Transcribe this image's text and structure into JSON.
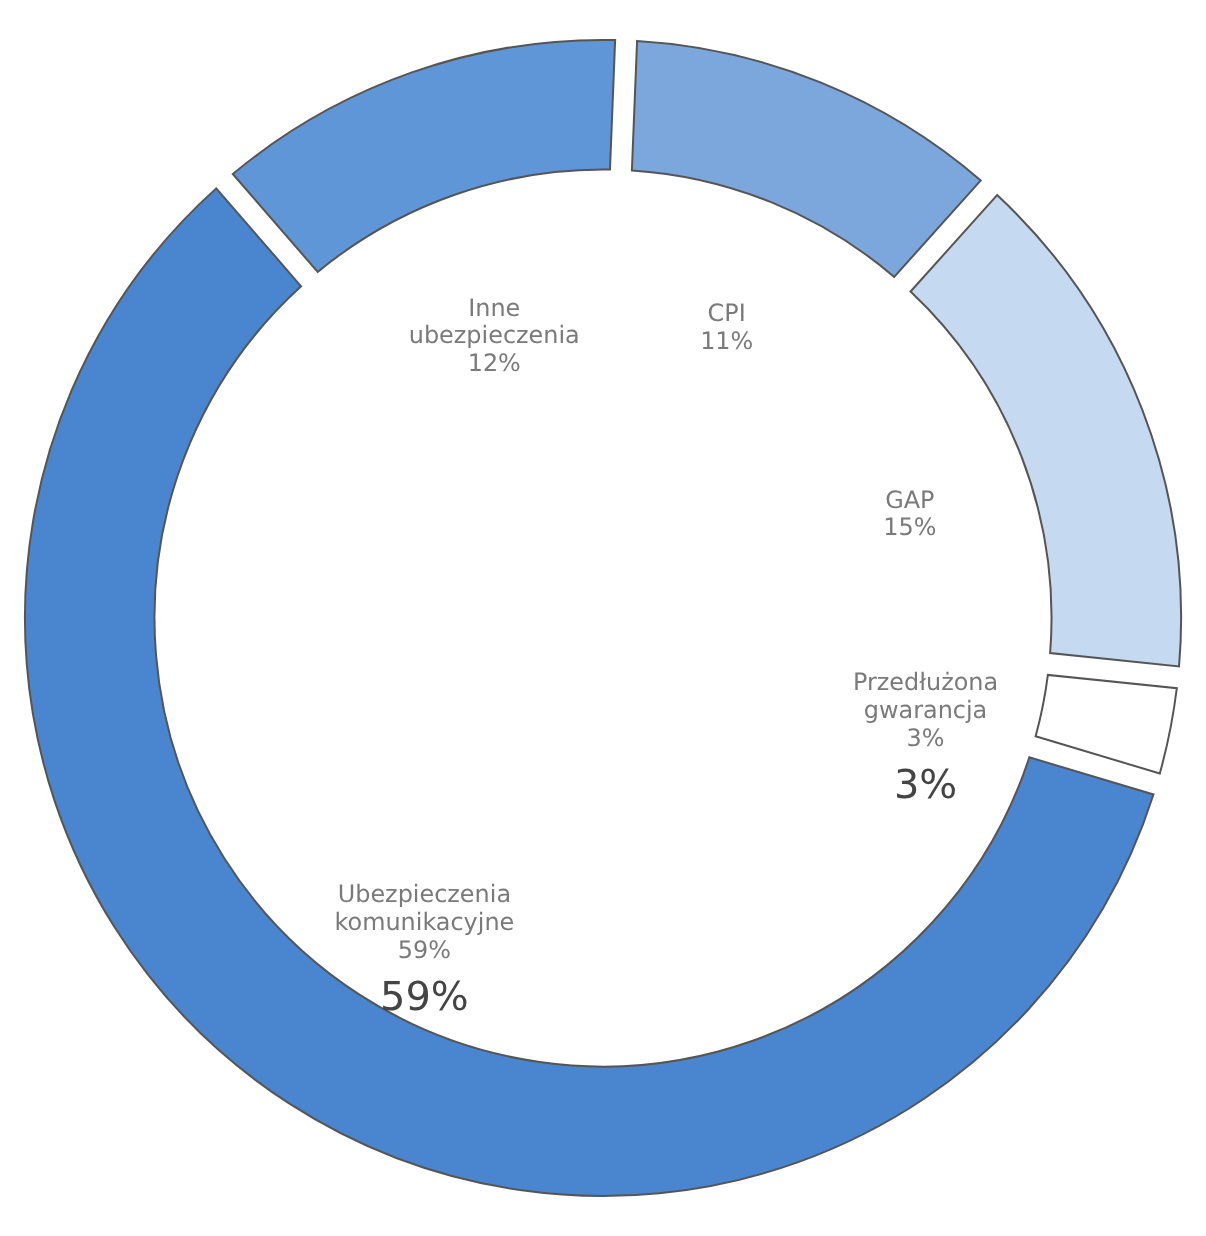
{
  "chart_data": {
    "type": "donut",
    "categories": [
      "CPI",
      "GAP",
      "Przedłużona gwarancja",
      "Ubezpieczenia komunikacyjne",
      "Inne ubezpieczenia"
    ],
    "values": [
      11,
      15,
      3,
      59,
      12
    ],
    "colors": [
      "#7ba7dd",
      "#c5d9f0",
      "#ffffff",
      "#4a86d0",
      "#5f96d8"
    ],
    "value_labels": [
      "11%",
      "15%",
      "3%",
      "59%",
      "12%"
    ],
    "annotations": [
      {
        "text": "3%",
        "x": "Przedłużona gwarancja"
      },
      {
        "text": "59%",
        "x": "Ubezpieczenia komunikacyjne"
      }
    ],
    "legend": false
  }
}
